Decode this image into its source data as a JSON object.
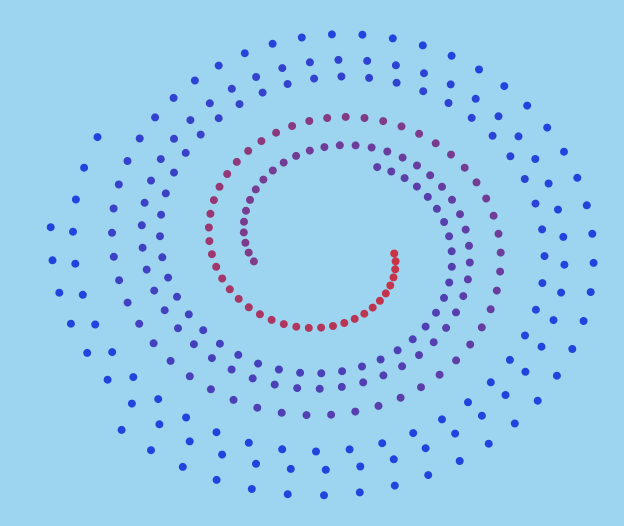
{
  "scene": {
    "background_color": "#9dd5f0",
    "outer_dot_color": "#2244dd",
    "inner_dot_color": "#cc3344"
  }
}
